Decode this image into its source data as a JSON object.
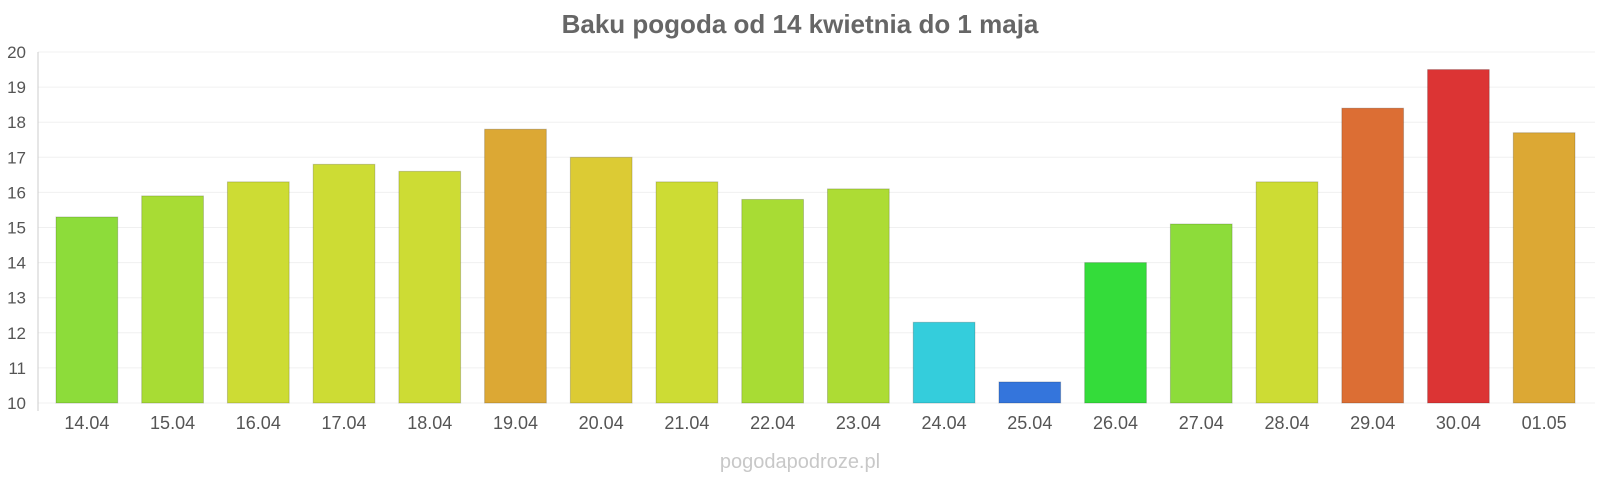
{
  "chart_data": {
    "type": "bar",
    "title": "Baku pogoda od 14 kwietnia do 1 maja",
    "xlabel": "",
    "ylabel": "",
    "ylim": [
      10,
      20
    ],
    "yticks": [
      10,
      11,
      12,
      13,
      14,
      15,
      16,
      17,
      18,
      19,
      20
    ],
    "grid": true,
    "categories": [
      "14.04",
      "15.04",
      "16.04",
      "17.04",
      "18.04",
      "19.04",
      "20.04",
      "21.04",
      "22.04",
      "23.04",
      "24.04",
      "25.04",
      "26.04",
      "27.04",
      "28.04",
      "29.04",
      "30.04",
      "01.05"
    ],
    "values": [
      15.3,
      15.9,
      16.3,
      16.8,
      16.6,
      17.8,
      17.0,
      16.3,
      15.8,
      16.1,
      12.3,
      10.6,
      14.0,
      15.1,
      16.3,
      18.4,
      19.5,
      17.7
    ],
    "colors": [
      "#8ddc3a",
      "#a8dc34",
      "#cddc34",
      "#cddc34",
      "#cddc34",
      "#dca834",
      "#dccb34",
      "#cddc34",
      "#a8dc34",
      "#addc34",
      "#34cddc",
      "#3475dc",
      "#34dc3a",
      "#8ddc3a",
      "#cddc34",
      "#dc6e34",
      "#dc3434",
      "#dca834"
    ],
    "watermark": "pogodapodroze.pl"
  }
}
